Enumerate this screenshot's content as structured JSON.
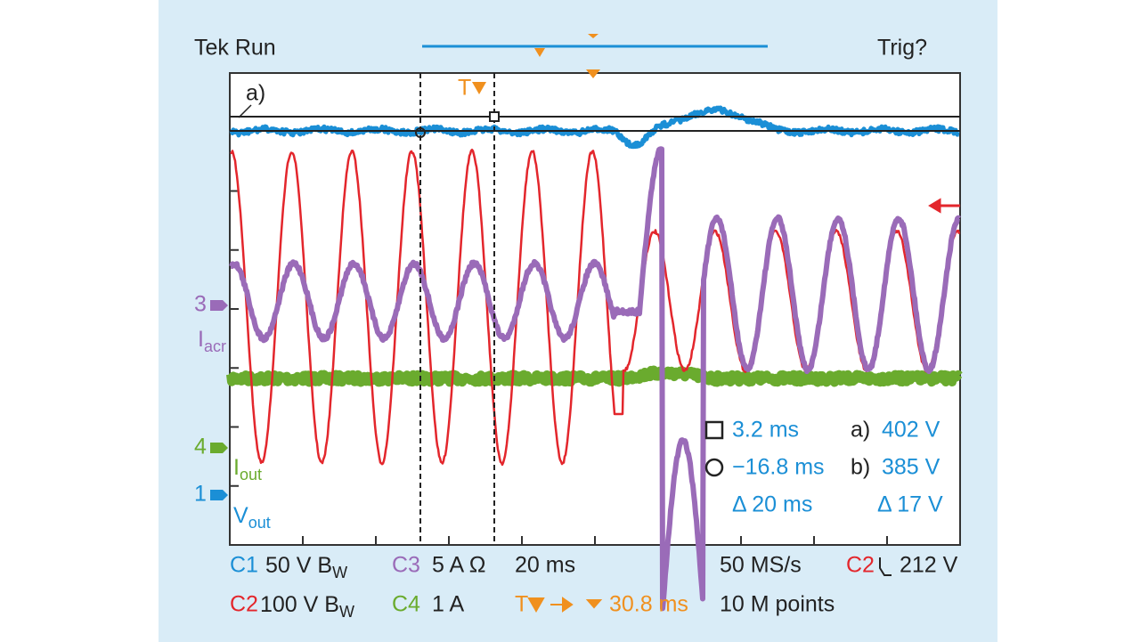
{
  "header": {
    "status": "Tek Run",
    "trigger_state": "Trig?"
  },
  "screen": {
    "cursor_label": "a)",
    "trigger_label": "T"
  },
  "channels": [
    {
      "number": "3",
      "label": "I",
      "label_sub": "acr"
    },
    {
      "number": "4",
      "label": "I",
      "label_sub": "out"
    },
    {
      "number": "1",
      "label": "V",
      "label_sub": "out"
    }
  ],
  "measurements": {
    "time_a": "3.2 ms",
    "time_b": "−16.8 ms",
    "time_delta": "Δ 20 ms",
    "volt_a_label": "a)",
    "volt_a": "402 V",
    "volt_b_label": "b)",
    "volt_b": "385 V",
    "volt_delta": "Δ 17 V"
  },
  "footer": {
    "row1": {
      "c1": "C1",
      "c1_scale": "50 V B",
      "c1_sub": "W",
      "c3": "C3",
      "c3_scale": "5 A Ω",
      "timebase": "20 ms",
      "sample_rate": "50 MS/s",
      "trig_ch": "C2",
      "trig_level": "212 V"
    },
    "row2": {
      "c2": "C2",
      "c2_scale": "100 V B",
      "c2_sub": "W",
      "c4": "C4",
      "c4_scale": "1 A",
      "trig_pos_label": "T",
      "trig_pos": "30.8 ms",
      "record": "10 M points"
    }
  }
}
